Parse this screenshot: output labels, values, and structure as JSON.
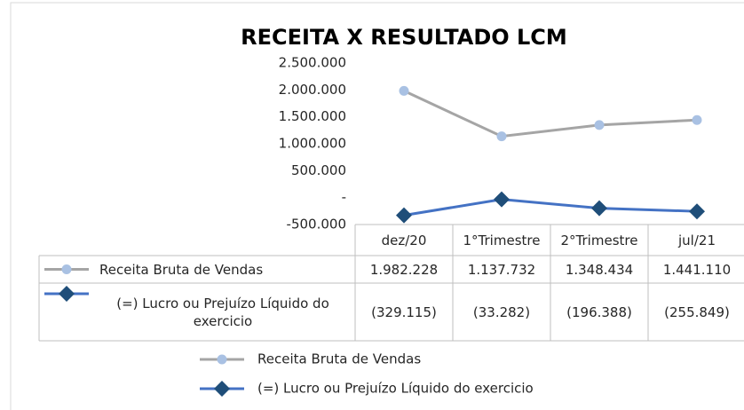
{
  "chart_data": {
    "type": "line",
    "title": "RECEITA X RESULTADO LCM",
    "categories": [
      "dez/20",
      "1°Trimestre",
      "2°Trimestre",
      "jul/21"
    ],
    "series": [
      {
        "name": "Receita Bruta de Vendas",
        "color": "#a5a5a5",
        "marker_color": "#a9c1e3",
        "marker": "circle",
        "values": [
          1982228,
          1137732,
          1348434,
          1441110
        ],
        "value_labels": [
          "1.982.228",
          "1.137.732",
          "1.348.434",
          "1.441.110"
        ]
      },
      {
        "name": "(=) Lucro ou Prejuízo Líquido do exercicio",
        "color": "#4472c4",
        "marker_color": "#1f4e79",
        "marker": "diamond",
        "values": [
          -329115,
          -33282,
          -196388,
          -255849
        ],
        "value_labels": [
          "(329.115)",
          "(33.282)",
          "(196.388)",
          "(255.849)"
        ]
      }
    ],
    "ylim": [
      -500000,
      2500000
    ],
    "yticks": [
      {
        "value": -500000,
        "label": "-500.000"
      },
      {
        "value": 0,
        "label": "-"
      },
      {
        "value": 500000,
        "label": "500.000"
      },
      {
        "value": 1000000,
        "label": "1.000.000"
      },
      {
        "value": 1500000,
        "label": "1.500.000"
      },
      {
        "value": 2000000,
        "label": "2.000.000"
      },
      {
        "value": 2500000,
        "label": "2.500.000"
      }
    ],
    "grid": false,
    "data_table": true,
    "legend": "bottom"
  }
}
